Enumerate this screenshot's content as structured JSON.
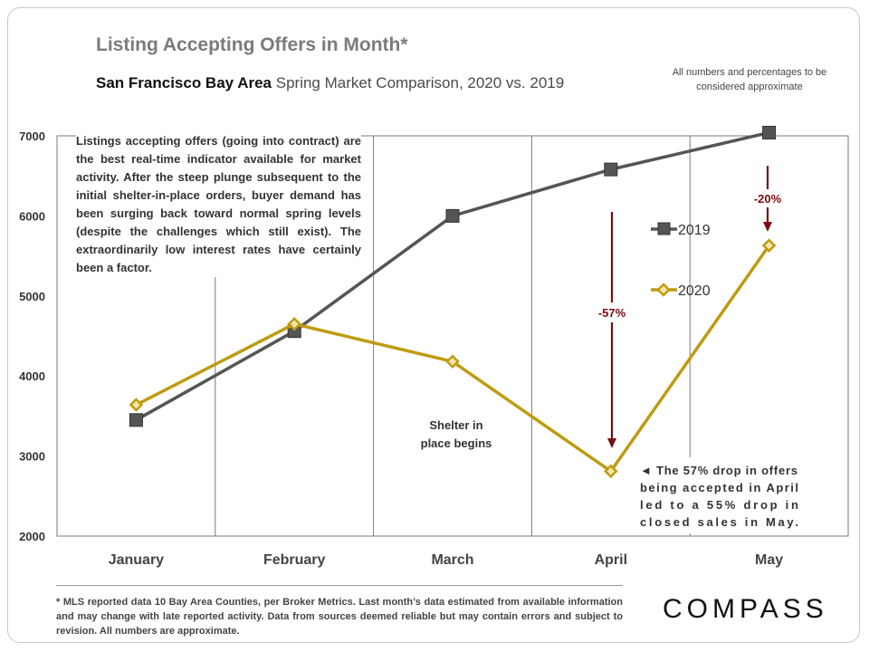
{
  "title": "Listing Accepting Offers in Month*",
  "subtitle": {
    "region": "San Francisco Bay Area",
    "rest": "Spring Market Comparison,  2020 vs. 2019"
  },
  "disclaimer": "All numbers and percentages to be considered approximate",
  "note": "Listings accepting offers (going into contract) are the best real-time indicator available for market activity. After the steep plunge subsequent to the initial shelter-in-place orders, buyer demand has been surging back toward normal spring levels (despite the challenges which still exist). The extraordinarily low interest rates have certainly been a factor.",
  "footnote": "* MLS reported data 10 Bay Area Counties, per Broker Metrics. Last month’s data estimated from available information and may change with late reported activity. Data from sources deemed reliable but may contain errors and subject to revision. All numbers are approximate.",
  "logo": "COMPASS",
  "colors": {
    "2019": "#555555",
    "2020": "#c09b10",
    "arrow": "#7a0d0d"
  },
  "chart_data": {
    "type": "line",
    "categories": [
      "January",
      "February",
      "March",
      "April",
      "May"
    ],
    "series": [
      {
        "name": "2019",
        "values": [
          3450,
          4560,
          6000,
          6580,
          7040
        ],
        "marker": "square"
      },
      {
        "name": "2020",
        "values": [
          3640,
          4650,
          4180,
          2810,
          5630
        ],
        "marker": "diamond"
      }
    ],
    "ylim": [
      2000,
      7000
    ],
    "yticks": [
      2000,
      3000,
      4000,
      5000,
      6000,
      7000
    ],
    "xlabel": "",
    "ylabel": "",
    "annotations": {
      "april_drop": "-57%",
      "may_drop": "-20%",
      "shelter": [
        "Shelter in",
        "place begins"
      ],
      "april_note": [
        "◄ The 57% drop in offers",
        "being accepted in April",
        "led to a 55% drop in",
        "closed sales in May."
      ]
    }
  }
}
